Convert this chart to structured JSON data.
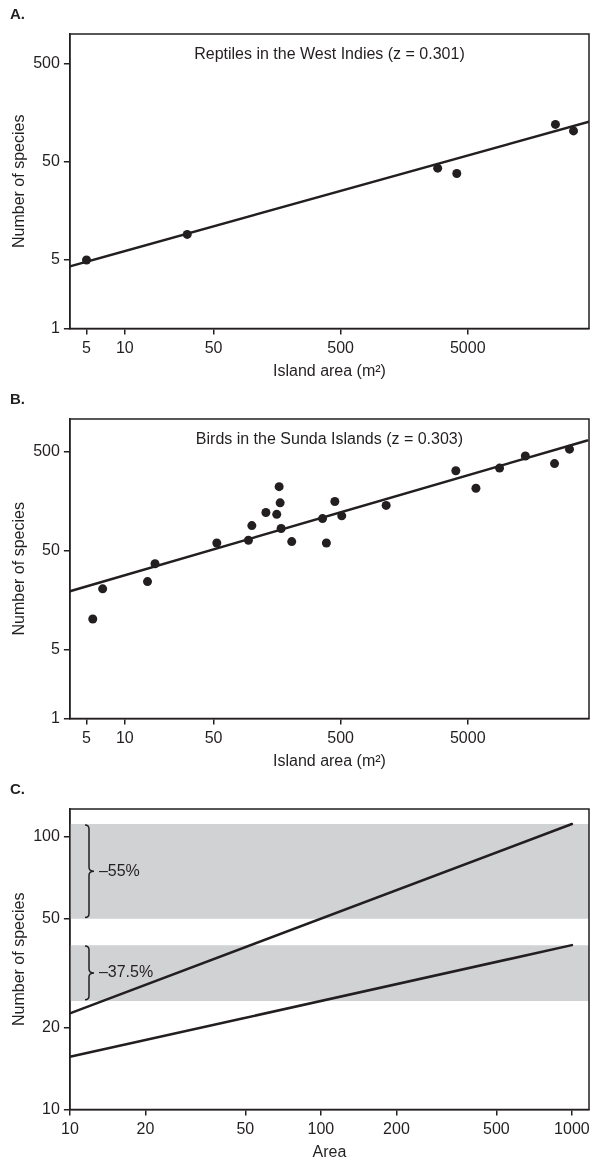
{
  "chart_data": [
    {
      "type": "scatter",
      "title": "A.",
      "subtitle": "Reptiles in the West Indies (z = 0.301)",
      "xlabel": "Island area (m²)",
      "ylabel": "Number of species",
      "log": "xy",
      "xlim": [
        3.7,
        45000
      ],
      "ylim": [
        1,
        1000
      ],
      "xticks": [
        5,
        10,
        50,
        500,
        5000
      ],
      "yticks": [
        1,
        5,
        50,
        500
      ],
      "grid": false,
      "legend": false,
      "series": [
        {
          "color": "#231f20",
          "marker": "circle",
          "x": [
            5,
            31,
            2900,
            4100,
            24500,
            34000
          ],
          "values": [
            5,
            9.1,
            43,
            38,
            120,
            103
          ]
        },
        {
          "type": "line",
          "marker": "none",
          "color": "#231f20",
          "x": [
            3.7,
            45000
          ],
          "values": [
            4.3,
            128
          ]
        }
      ]
    },
    {
      "type": "scatter",
      "title": "B.",
      "subtitle": "Birds in the Sunda Islands (z = 0.303)",
      "xlabel": "Island area (m²)",
      "ylabel": "Number of species",
      "log": "xy",
      "xlim": [
        3.7,
        45000
      ],
      "ylim": [
        1,
        1080
      ],
      "xticks": [
        5,
        10,
        50,
        500,
        5000
      ],
      "yticks": [
        1,
        5,
        50,
        500
      ],
      "grid": false,
      "legend": false,
      "series": [
        {
          "color": "#231f20",
          "marker": "circle",
          "x": [
            5.6,
            6.7,
            15.1,
            17.3,
            53,
            94,
            100,
            129,
            157,
            164,
            167,
            170,
            206,
            360,
            386,
            450,
            510,
            1140,
            4030,
            5800,
            8900,
            14200,
            24100,
            31600
          ],
          "values": [
            10.2,
            20.6,
            24.4,
            37,
            60,
            64,
            90,
            122,
            117,
            223,
            153,
            84,
            62,
            106,
            60,
            158,
            113,
            144,
            323,
            215,
            344,
            456,
            382,
            535
          ]
        },
        {
          "type": "line",
          "marker": "none",
          "color": "#231f20",
          "x": [
            3.7,
            43600
          ],
          "values": [
            19.5,
            655
          ]
        }
      ]
    },
    {
      "type": "line",
      "title": "C.",
      "xlabel": "Area",
      "ylabel": "Number of species",
      "log": "xy",
      "xlim": [
        10,
        1170
      ],
      "ylim": [
        10,
        126
      ],
      "xticks": [
        10,
        20,
        50,
        100,
        200,
        500,
        1000
      ],
      "yticks": [
        10,
        20,
        50,
        100
      ],
      "grid": false,
      "legend": false,
      "bands": [
        {
          "axis": "y",
          "from": 50,
          "to": 111,
          "label": "–55%",
          "color": "#d1d2d4"
        },
        {
          "axis": "y",
          "from": 25,
          "to": 40,
          "label": "–37.5%",
          "color": "#d1d2d4"
        }
      ],
      "series": [
        {
          "color": "#231f20",
          "x": [
            10,
            1000
          ],
          "values": [
            22.5,
            111
          ]
        },
        {
          "color": "#231f20",
          "x": [
            10,
            1000
          ],
          "values": [
            15.6,
            40
          ]
        }
      ]
    }
  ]
}
